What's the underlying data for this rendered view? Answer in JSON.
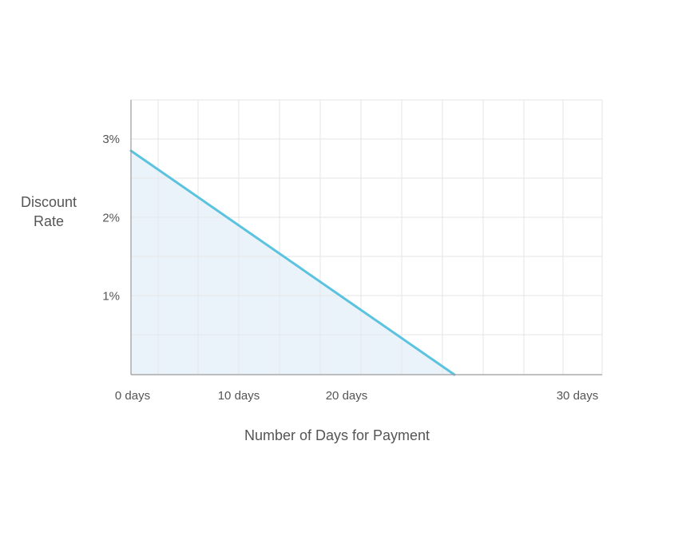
{
  "chart_data": {
    "type": "area",
    "title": "",
    "xlabel": "Number of Days for Payment",
    "ylabel": "Discount Rate",
    "x": [
      0,
      30
    ],
    "y": [
      2.85,
      0
    ],
    "xlim": [
      0,
      30
    ],
    "ylim": [
      0,
      3.5
    ],
    "x_ticks": [
      {
        "value": 0,
        "label": "0 days"
      },
      {
        "value": 10,
        "label": "10 days"
      },
      {
        "value": 20,
        "label": "20 days"
      },
      {
        "value": 30,
        "label": "30 days"
      }
    ],
    "y_ticks": [
      {
        "value": 1,
        "label": "1%"
      },
      {
        "value": 2,
        "label": "2%"
      },
      {
        "value": 3,
        "label": "3%"
      }
    ],
    "grid": true,
    "legend": "none",
    "colors": {
      "line": "#5bc3df",
      "fill": "#e6f1f8",
      "grid": "#e4e4e4",
      "axis": "#9a9a9a",
      "text": "#555555"
    }
  }
}
